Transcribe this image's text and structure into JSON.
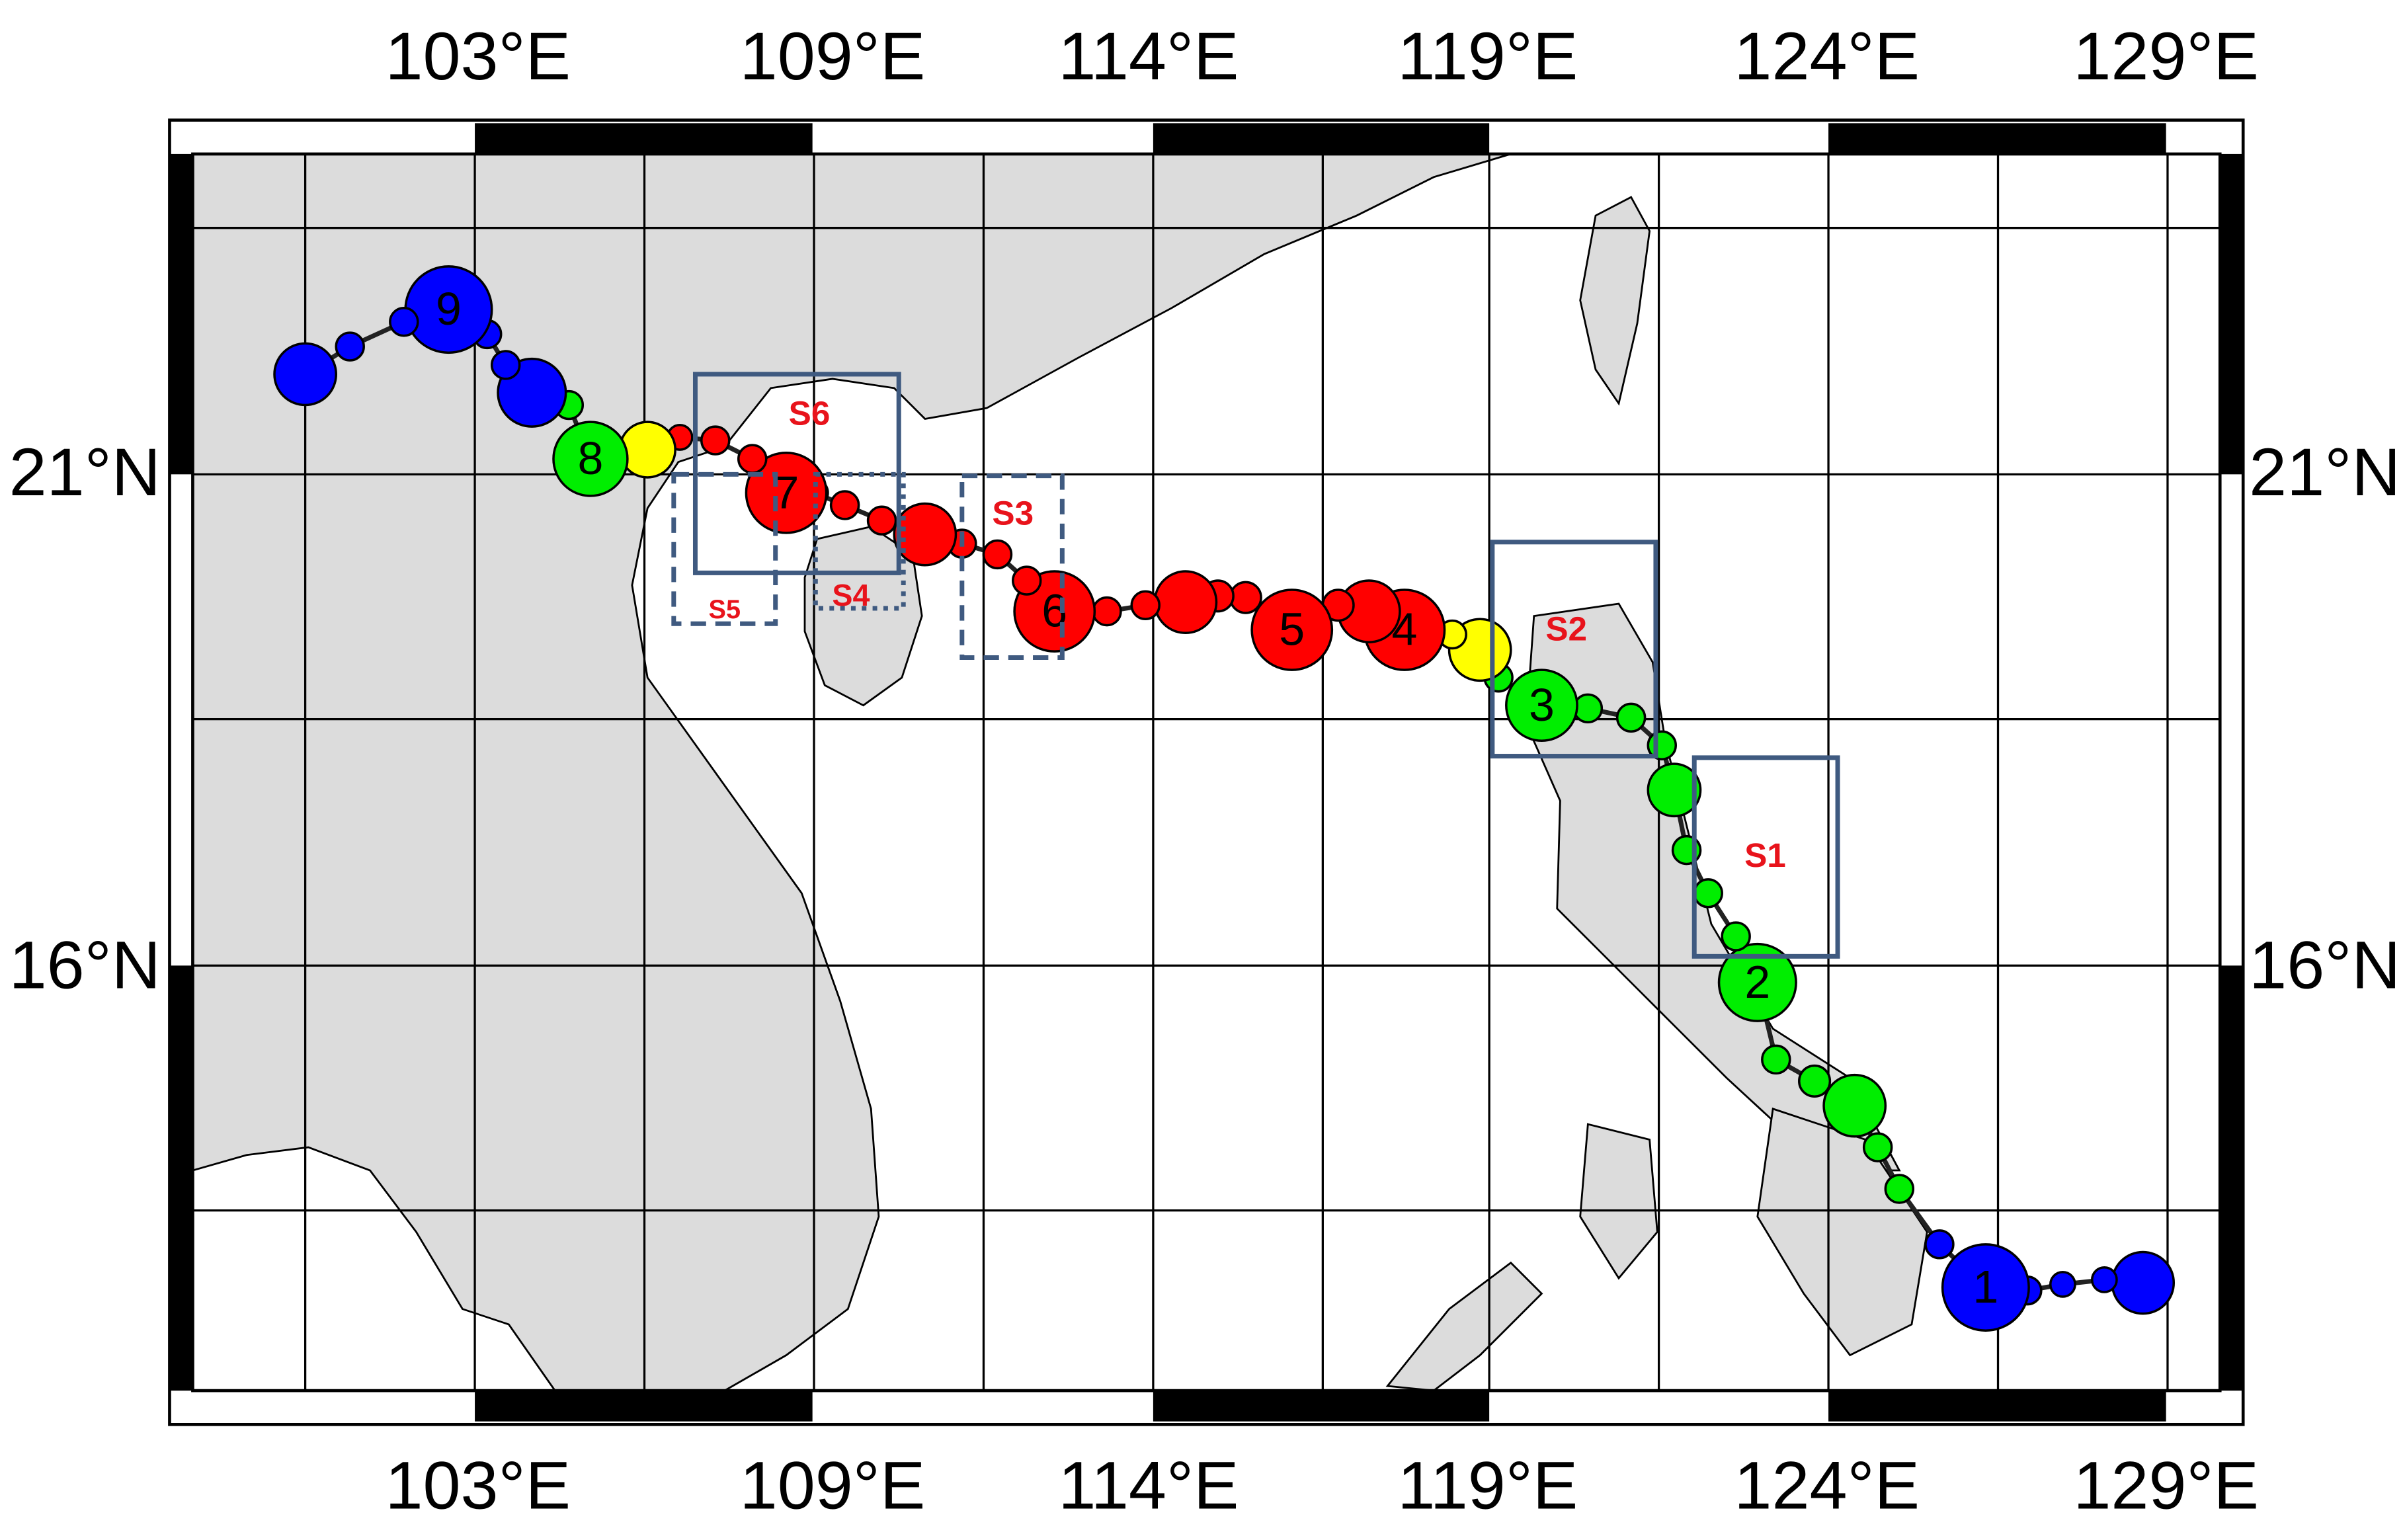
{
  "map": {
    "lon_labels": [
      "103°E",
      "109°E",
      "114°E",
      "119°E",
      "124°E",
      "129°E"
    ],
    "lat_labels": [
      "21°N",
      "16°N"
    ],
    "track_labels": [
      "1",
      "2",
      "3",
      "4",
      "5",
      "6",
      "7",
      "8",
      "9"
    ],
    "regions": [
      "S1",
      "S2",
      "S3",
      "S4",
      "S5",
      "S6"
    ]
  }
}
